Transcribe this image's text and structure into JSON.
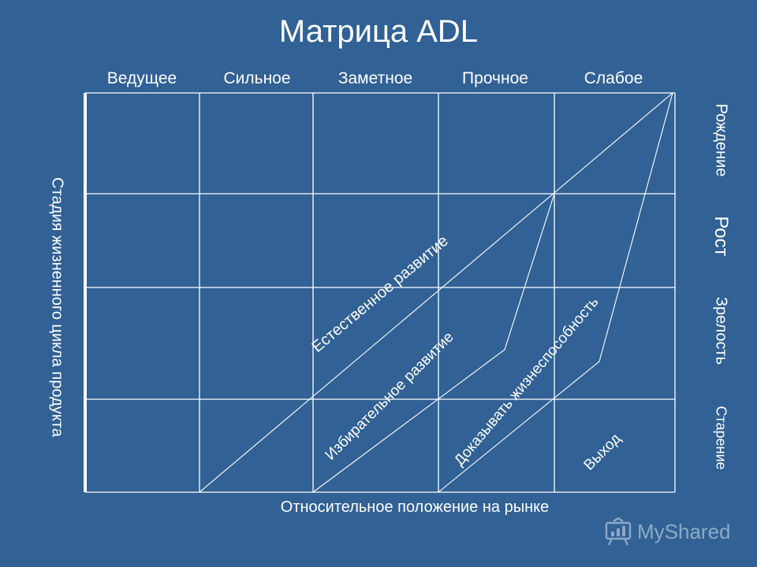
{
  "title": "Матрица ADL",
  "columns": [
    "Ведущее",
    "Сильное",
    "Заметное",
    "Прочное",
    "Слабое"
  ],
  "x_axis_label": "Относительное положение на рынке",
  "y_axis_label": "Стадия жизненного цикла продукта",
  "stages": [
    "Рождение",
    "Рост",
    "Зрелость",
    "Старение"
  ],
  "strategies": [
    "Естественное развитие",
    "Избирательное развитие",
    "Доказывать жизнеспособность",
    "Выход"
  ],
  "logo": {
    "text": "MyShared",
    "icon": "presentation-board-icon"
  },
  "colors": {
    "background": "#316195",
    "lines": "#ffffff"
  }
}
